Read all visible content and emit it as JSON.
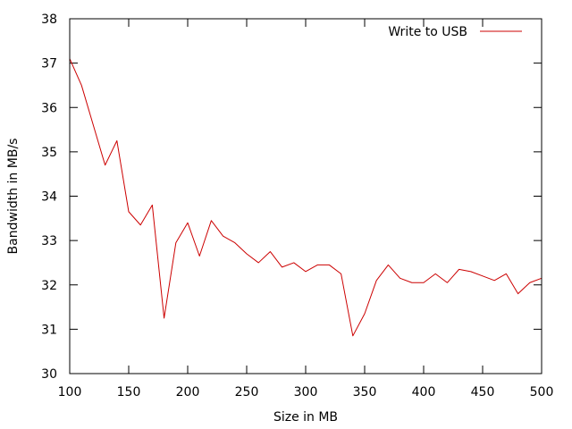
{
  "chart_data": {
    "type": "line",
    "title": "",
    "xlabel": "Size in MB",
    "ylabel": "Bandwidth in MB/s",
    "xlim": [
      100,
      500
    ],
    "ylim": [
      30,
      38
    ],
    "xticks": [
      100,
      150,
      200,
      250,
      300,
      350,
      400,
      450,
      500
    ],
    "yticks": [
      30,
      31,
      32,
      33,
      34,
      35,
      36,
      37,
      38
    ],
    "xtick_labels": [
      "100",
      "150",
      "200",
      "250",
      "300",
      "350",
      "400",
      "450",
      "500"
    ],
    "ytick_labels": [
      "30",
      "31",
      "32",
      "33",
      "34",
      "35",
      "36",
      "37",
      "38"
    ],
    "grid": false,
    "legend_position": "top-right",
    "series": [
      {
        "name": "Write to USB",
        "color": "#cc0000",
        "x": [
          100,
          110,
          120,
          130,
          140,
          150,
          160,
          170,
          180,
          190,
          200,
          210,
          220,
          230,
          240,
          250,
          260,
          270,
          280,
          290,
          300,
          310,
          320,
          330,
          340,
          350,
          360,
          370,
          380,
          390,
          400,
          410,
          420,
          430,
          440,
          450,
          460,
          470,
          480,
          490,
          500
        ],
        "values": [
          37.1,
          36.5,
          35.6,
          34.7,
          35.25,
          33.65,
          33.35,
          33.8,
          31.25,
          32.95,
          33.4,
          32.65,
          33.45,
          33.1,
          32.95,
          32.7,
          32.5,
          32.75,
          32.4,
          32.5,
          32.3,
          32.45,
          32.45,
          32.25,
          30.85,
          31.35,
          32.1,
          32.45,
          32.15,
          32.05,
          32.05,
          32.25,
          32.05,
          32.35,
          32.3,
          32.2,
          32.1,
          32.25,
          31.8,
          32.05,
          32.15
        ]
      }
    ]
  }
}
